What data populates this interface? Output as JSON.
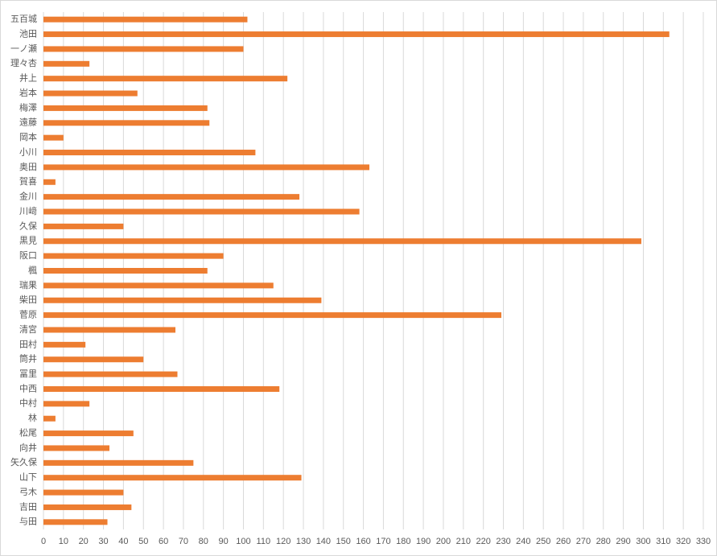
{
  "chart_data": {
    "type": "bar",
    "orientation": "horizontal",
    "categories": [
      "五百城",
      "池田",
      "一ノ瀬",
      "理々杏",
      "井上",
      "岩本",
      "梅澤",
      "遠藤",
      "岡本",
      "小川",
      "奥田",
      "賀喜",
      "金川",
      "川﨑",
      "久保",
      "黒見",
      "阪口",
      "楓",
      "瑞果",
      "柴田",
      "菅原",
      "清宮",
      "田村",
      "筒井",
      "冨里",
      "中西",
      "中村",
      "林",
      "松尾",
      "向井",
      "矢久保",
      "山下",
      "弓木",
      "吉田",
      "与田"
    ],
    "values": [
      102,
      313,
      100,
      23,
      122,
      47,
      82,
      83,
      10,
      106,
      163,
      6,
      128,
      158,
      40,
      299,
      90,
      82,
      115,
      139,
      229,
      66,
      21,
      50,
      67,
      118,
      23,
      6,
      45,
      33,
      75,
      129,
      40,
      44,
      32
    ],
    "color": "#ed7d31",
    "xlim": [
      0,
      330
    ],
    "xticks": [
      0,
      10,
      20,
      30,
      40,
      50,
      60,
      70,
      80,
      90,
      100,
      110,
      120,
      130,
      140,
      150,
      160,
      170,
      180,
      190,
      200,
      210,
      220,
      230,
      240,
      250,
      260,
      270,
      280,
      290,
      300,
      310,
      320,
      330
    ],
    "grid": true
  }
}
